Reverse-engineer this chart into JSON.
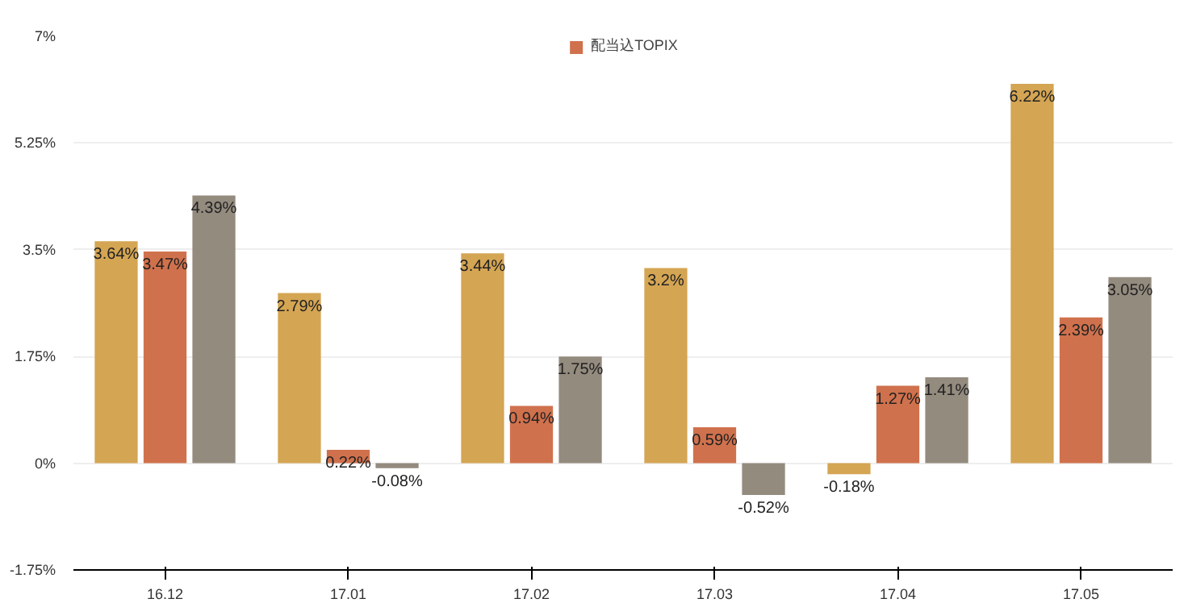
{
  "chart_data": {
    "type": "bar",
    "categories": [
      "16.12",
      "17.01",
      "17.02",
      "17.03",
      "17.04",
      "17.05"
    ],
    "series": [
      {
        "color": "#d4a553",
        "values": [
          3.64,
          2.79,
          3.44,
          3.2,
          -0.18,
          6.22
        ],
        "value_labels": [
          "3.64%",
          "2.79%",
          "3.44%",
          "3.2%",
          "-0.18%",
          "6.22%"
        ]
      },
      {
        "name": "配当込TOPIX",
        "color": "#d0714d",
        "values": [
          3.47,
          0.22,
          0.94,
          0.59,
          1.27,
          2.39
        ],
        "value_labels": [
          "3.47%",
          "0.22%",
          "0.94%",
          "0.59%",
          "1.27%",
          "2.39%"
        ]
      },
      {
        "color": "#948b7f",
        "values": [
          4.39,
          -0.08,
          1.75,
          -0.52,
          1.41,
          3.05
        ],
        "value_labels": [
          "4.39%",
          "-0.08%",
          "1.75%",
          "-0.52%",
          "1.41%",
          "3.05%"
        ]
      }
    ],
    "ylim": [
      -1.75,
      7
    ],
    "yticks": [
      {
        "value": -1.75,
        "label": "-1.75%"
      },
      {
        "value": 0,
        "label": "0%"
      },
      {
        "value": 1.75,
        "label": "1.75%"
      },
      {
        "value": 3.5,
        "label": "3.5%"
      },
      {
        "value": 5.25,
        "label": "5.25%"
      },
      {
        "value": 7,
        "label": "7%"
      }
    ],
    "grid": "y",
    "legend": "top"
  }
}
